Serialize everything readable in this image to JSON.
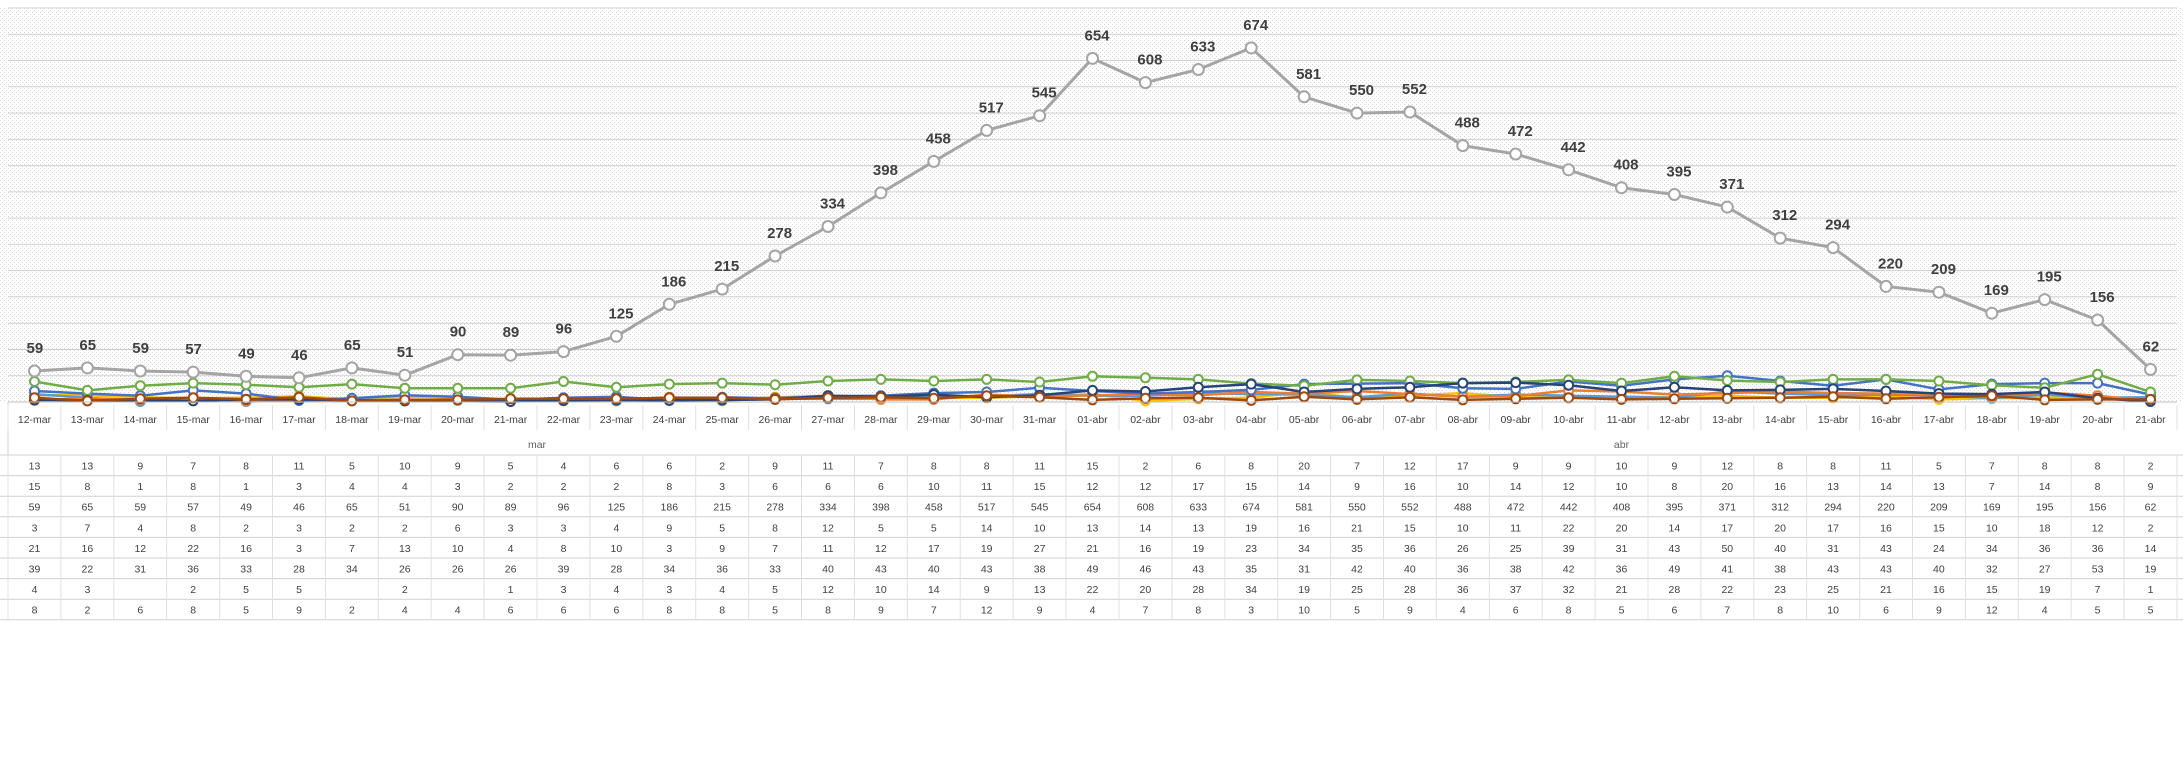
{
  "chart_data": {
    "type": "line",
    "groups": [
      {
        "label": "mar",
        "span": [
          0,
          19
        ]
      },
      {
        "label": "abr",
        "span": [
          20,
          40
        ]
      }
    ],
    "categories": [
      "12-mar",
      "13-mar",
      "14-mar",
      "15-mar",
      "16-mar",
      "17-mar",
      "18-mar",
      "19-mar",
      "20-mar",
      "21-mar",
      "22-mar",
      "23-mar",
      "24-mar",
      "25-mar",
      "26-mar",
      "27-mar",
      "28-mar",
      "29-mar",
      "30-mar",
      "31-mar",
      "01-abr",
      "02-abr",
      "03-abr",
      "04-abr",
      "05-abr",
      "06-abr",
      "07-abr",
      "08-abr",
      "09-abr",
      "10-abr",
      "11-abr",
      "12-abr",
      "13-abr",
      "14-abr",
      "15-abr",
      "16-abr",
      "17-abr",
      "18-abr",
      "19-abr",
      "20-abr",
      "21-abr"
    ],
    "ylim": [
      0,
      750
    ],
    "grid": true,
    "labeled_series": 2,
    "series": [
      {
        "color": "#FFC000",
        "values": [
          "13",
          "13",
          "9",
          "7",
          "8",
          "11",
          "5",
          "10",
          "9",
          "5",
          "4",
          "6",
          "6",
          "2",
          "9",
          "11",
          "7",
          "8",
          "8",
          "11",
          "15",
          "2",
          "6",
          "8",
          "20",
          "7",
          "12",
          "17",
          "9",
          "9",
          "10",
          "9",
          "12",
          "8",
          "8",
          "11",
          "5",
          "7",
          "8",
          "8",
          "2"
        ]
      },
      {
        "color": "#5B9BD5",
        "values": [
          "15",
          "8",
          "1",
          "8",
          "1",
          "3",
          "4",
          "4",
          "3",
          "2",
          "2",
          "2",
          "8",
          "3",
          "6",
          "6",
          "6",
          "10",
          "11",
          "15",
          "12",
          "12",
          "17",
          "15",
          "14",
          "9",
          "16",
          "10",
          "14",
          "12",
          "10",
          "8",
          "20",
          "16",
          "13",
          "14",
          "13",
          "7",
          "14",
          "8",
          "9"
        ]
      },
      {
        "color": "#A5A5A5",
        "values": [
          "59",
          "65",
          "59",
          "57",
          "49",
          "46",
          "65",
          "51",
          "90",
          "89",
          "96",
          "125",
          "186",
          "215",
          "278",
          "334",
          "398",
          "458",
          "517",
          "545",
          "654",
          "608",
          "633",
          "674",
          "581",
          "550",
          "552",
          "488",
          "472",
          "442",
          "408",
          "395",
          "371",
          "312",
          "294",
          "220",
          "209",
          "169",
          "195",
          "156",
          "62"
        ]
      },
      {
        "color": "#ED7D31",
        "values": [
          "3",
          "7",
          "4",
          "8",
          "2",
          "3",
          "2",
          "2",
          "6",
          "3",
          "3",
          "4",
          "9",
          "5",
          "8",
          "12",
          "5",
          "5",
          "14",
          "10",
          "13",
          "14",
          "13",
          "19",
          "16",
          "21",
          "15",
          "10",
          "11",
          "22",
          "20",
          "14",
          "17",
          "20",
          "17",
          "16",
          "15",
          "10",
          "18",
          "12",
          "2"
        ]
      },
      {
        "color": "#4472C4",
        "values": [
          "21",
          "16",
          "12",
          "22",
          "16",
          "3",
          "7",
          "13",
          "10",
          "4",
          "8",
          "10",
          "3",
          "9",
          "7",
          "11",
          "12",
          "17",
          "19",
          "27",
          "21",
          "16",
          "19",
          "23",
          "34",
          "35",
          "36",
          "26",
          "25",
          "39",
          "31",
          "43",
          "50",
          "40",
          "31",
          "43",
          "24",
          "34",
          "36",
          "36",
          "14"
        ]
      },
      {
        "color": "#70AD47",
        "values": [
          "39",
          "22",
          "31",
          "36",
          "33",
          "28",
          "34",
          "26",
          "26",
          "26",
          "39",
          "28",
          "34",
          "36",
          "33",
          "40",
          "43",
          "40",
          "43",
          "38",
          "49",
          "46",
          "43",
          "35",
          "31",
          "42",
          "40",
          "36",
          "38",
          "42",
          "36",
          "49",
          "41",
          "38",
          "43",
          "43",
          "40",
          "32",
          "27",
          "53",
          "19"
        ]
      },
      {
        "color": "#264478",
        "values": [
          "4",
          "3",
          "",
          "2",
          "5",
          "5",
          "",
          "2",
          "",
          "1",
          "3",
          "4",
          "3",
          "4",
          "5",
          "12",
          "10",
          "14",
          "9",
          "13",
          "22",
          "20",
          "28",
          "34",
          "19",
          "25",
          "28",
          "36",
          "37",
          "32",
          "21",
          "28",
          "22",
          "23",
          "25",
          "21",
          "16",
          "15",
          "19",
          "7",
          "1"
        ]
      },
      {
        "color": "#9E480E",
        "values": [
          "8",
          "2",
          "6",
          "8",
          "5",
          "9",
          "2",
          "4",
          "4",
          "6",
          "6",
          "6",
          "8",
          "8",
          "5",
          "8",
          "9",
          "7",
          "12",
          "9",
          "4",
          "7",
          "8",
          "3",
          "10",
          "5",
          "9",
          "4",
          "6",
          "8",
          "5",
          "6",
          "7",
          "8",
          "10",
          "6",
          "9",
          "12",
          "4",
          "5",
          "5"
        ]
      }
    ]
  }
}
